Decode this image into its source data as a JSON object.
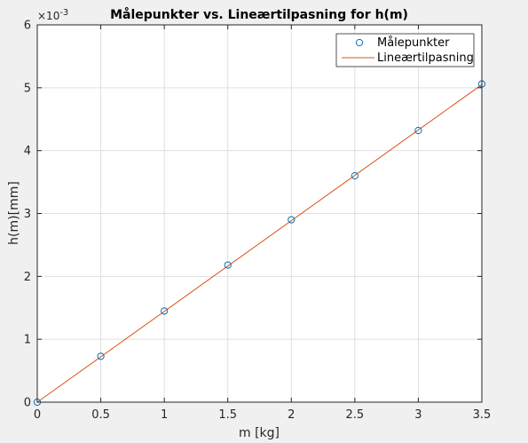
{
  "chart_data": {
    "type": "scatter",
    "title": "Målepunkter vs. Lineærtilpasning for h(m)",
    "xlabel": "m [kg]",
    "ylabel": "h(m)[mm]",
    "xlim": [
      0,
      3.5
    ],
    "ylim": [
      0,
      6
    ],
    "y_exponent_label": "×10",
    "y_exponent_power": "-3",
    "x_ticks": [
      "0",
      "0.5",
      "1",
      "1.5",
      "2",
      "2.5",
      "3",
      "3.5"
    ],
    "y_ticks": [
      "0",
      "1",
      "2",
      "3",
      "4",
      "5",
      "6"
    ],
    "grid": true,
    "legend_position": "top-right",
    "series": [
      {
        "name": "Målepunkter",
        "style": "markers",
        "marker": "circle",
        "color": "#0072bd",
        "x": [
          0,
          0.5,
          1,
          1.5,
          2,
          2.5,
          3,
          3.5
        ],
        "y": [
          0,
          0.73,
          1.45,
          2.18,
          2.9,
          3.6,
          4.32,
          5.06
        ]
      },
      {
        "name": "Lineærtilpasning",
        "style": "line",
        "color": "#d95319",
        "x": [
          0,
          3.5
        ],
        "y": [
          0,
          5.05
        ]
      }
    ]
  }
}
